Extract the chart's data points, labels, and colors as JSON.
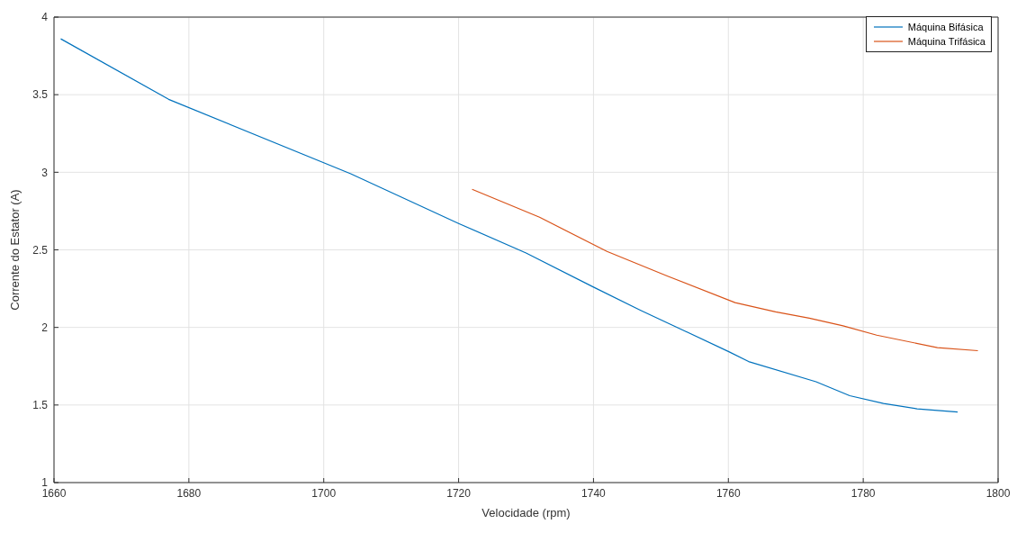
{
  "chart_data": {
    "type": "line",
    "xlabel": "Velocidade (rpm)",
    "ylabel": "Corrente do Estator (A)",
    "xlim": [
      1660,
      1800
    ],
    "xticks": [
      1660,
      1680,
      1700,
      1720,
      1740,
      1760,
      1780,
      1800
    ],
    "ylim": [
      1,
      4
    ],
    "yticks": [
      1,
      1.5,
      2,
      2.5,
      3,
      3.5,
      4
    ],
    "grid": true,
    "legend": "top right",
    "marker": "none",
    "line_style": "solid",
    "series": [
      {
        "name": "Máquina Bifásica",
        "color": "#0072bd",
        "x": [
          1661,
          1677,
          1704,
          1720,
          1730,
          1740,
          1747,
          1760,
          1763,
          1773,
          1778,
          1783,
          1788,
          1794
        ],
        "values": [
          3.86,
          3.47,
          2.99,
          2.67,
          2.48,
          2.26,
          2.11,
          1.845,
          1.78,
          1.65,
          1.56,
          1.51,
          1.475,
          1.455
        ]
      },
      {
        "name": "Máquina Trifásica",
        "color": "#d95319",
        "x": [
          1722,
          1732,
          1742,
          1751,
          1761,
          1767,
          1772,
          1777,
          1782,
          1791,
          1797
        ],
        "values": [
          2.89,
          2.71,
          2.49,
          2.33,
          2.16,
          2.1,
          2.06,
          2.01,
          1.95,
          1.87,
          1.85
        ]
      }
    ]
  }
}
